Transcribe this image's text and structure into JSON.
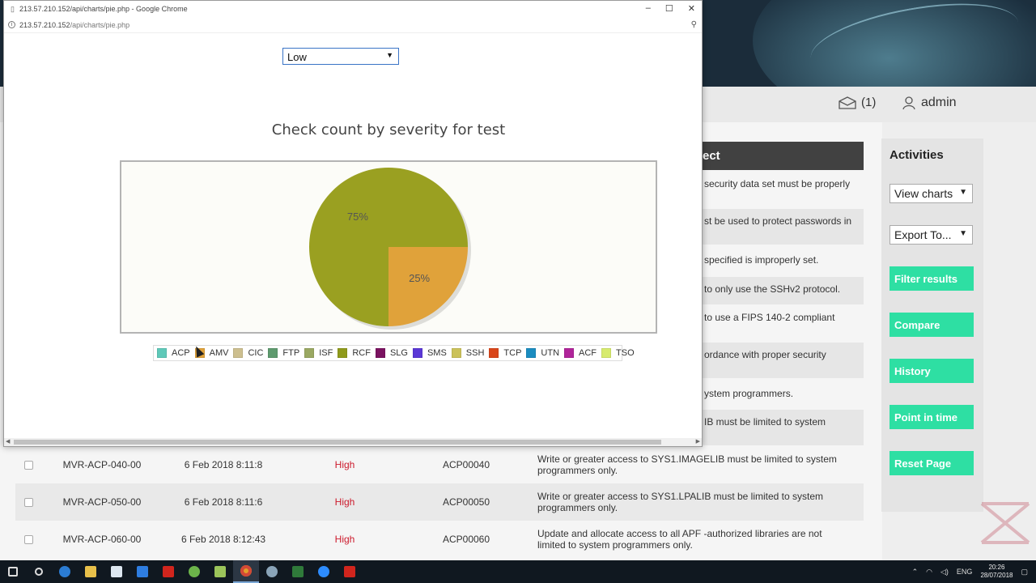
{
  "popup": {
    "title": "213.57.210.152/api/charts/pie.php - Google Chrome",
    "url_host": "213.57.210.152",
    "url_path": "/api/charts/pie.php",
    "severity_select": "Low"
  },
  "chart_data": {
    "type": "pie",
    "title": "Check count by severity for test",
    "slices": [
      {
        "label": "75%",
        "value": 75,
        "color": "#9aa021"
      },
      {
        "label": "25%",
        "value": 25,
        "color": "#e0a23a"
      }
    ],
    "legend": [
      {
        "name": "ACP",
        "color": "#5fc9b9"
      },
      {
        "name": "AMV",
        "color": "#e0a23a"
      },
      {
        "name": "CIC",
        "color": "#cdbf8f"
      },
      {
        "name": "FTP",
        "color": "#5e9a6e"
      },
      {
        "name": "ISF",
        "color": "#9aa862"
      },
      {
        "name": "RCF",
        "color": "#8f9a1b"
      },
      {
        "name": "SLG",
        "color": "#7a1260"
      },
      {
        "name": "SMS",
        "color": "#5b38d6"
      },
      {
        "name": "SSH",
        "color": "#cbc25a"
      },
      {
        "name": "TCP",
        "color": "#d9461a"
      },
      {
        "name": "UTN",
        "color": "#1b8cc0"
      },
      {
        "name": "ACF",
        "color": "#b0249a"
      },
      {
        "name": "TSO",
        "color": "#d7eb6e"
      }
    ],
    "legend_position": "bottom"
  },
  "header": {
    "mail_count": "(1)",
    "username": "admin"
  },
  "description_panel": {
    "title": "ect",
    "lines": [
      "security data set must be properly",
      "st be used to protect passwords in",
      "specified is improperly set.",
      "to only use the SSHv2 protocol.",
      "to use a FIPS 140-2 compliant",
      "ordance with proper security",
      "ystem programmers.",
      "IB must be limited to system"
    ]
  },
  "activities": {
    "title": "Activities",
    "view_charts": "View charts",
    "export_to": "Export To...",
    "buttons": [
      "Filter results",
      "Compare",
      "History",
      "Point in time",
      "Reset Page"
    ]
  },
  "rows": [
    {
      "id": "MVR-ACP-040-00",
      "date": "6 Feb 2018 8:11:8",
      "severity": "High",
      "code": "ACP00040",
      "desc": "Write or greater access to SYS1.IMAGELIB must be limited to system programmers only."
    },
    {
      "id": "MVR-ACP-050-00",
      "date": "6 Feb 2018 8:11:6",
      "severity": "High",
      "code": "ACP00050",
      "desc": "Write or greater access to SYS1.LPALIB must be limited to system programmers only."
    },
    {
      "id": "MVR-ACP-060-00",
      "date": "6 Feb 2018 8:12:43",
      "severity": "High",
      "code": "ACP00060",
      "desc": "Update and allocate access to all APF -authorized libraries are not limited to system programmers only."
    }
  ],
  "taskbar": {
    "lang": "ENG",
    "time": "20:26",
    "date": "28/07/2018"
  }
}
